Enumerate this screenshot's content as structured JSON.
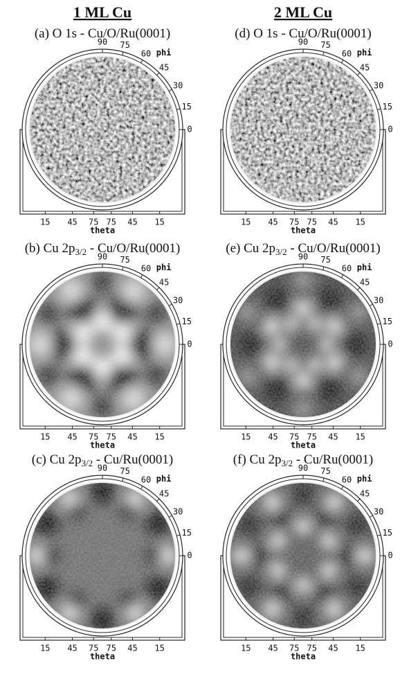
{
  "columns": [
    {
      "title": "1 ML Cu"
    },
    {
      "title": "2 ML Cu"
    }
  ],
  "panels": [
    {
      "prefix": "(a) O 1s - Cu/O/Ru(0001)"
    },
    {
      "prefix": "(b) Cu 2p",
      "sub": "3/2",
      "suffix": " - Cu/O/Ru(0001)"
    },
    {
      "prefix": "(c) Cu 2p",
      "sub": "3/2",
      "suffix": " - Cu/Ru(0001)"
    },
    {
      "prefix": "(d) O 1s - Cu/O/Ru(0001)"
    },
    {
      "prefix": "(e) Cu 2p",
      "sub": "3/2",
      "suffix": " - Cu/O/Ru(0001)"
    },
    {
      "prefix": "(f) Cu 2p",
      "sub": "3/2",
      "suffix": " - Cu/Ru(0001)"
    }
  ],
  "phi_ticks": [
    90,
    75,
    60,
    45,
    30,
    15,
    0
  ],
  "phi_label": "phi",
  "theta_ticks": [
    15,
    45,
    75,
    75,
    45,
    15
  ],
  "theta_label": "theta"
}
